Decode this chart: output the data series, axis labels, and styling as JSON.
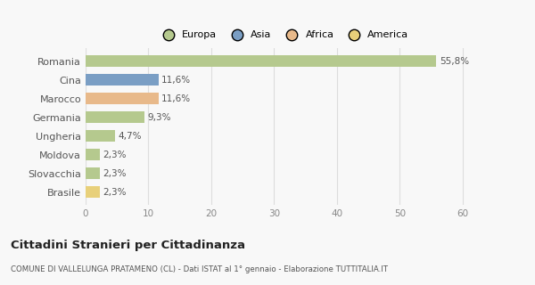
{
  "countries": [
    "Romania",
    "Cina",
    "Marocco",
    "Germania",
    "Ungheria",
    "Moldova",
    "Slovacchia",
    "Brasile"
  ],
  "values": [
    55.8,
    11.6,
    11.6,
    9.3,
    4.7,
    2.3,
    2.3,
    2.3
  ],
  "labels": [
    "55,8%",
    "11,6%",
    "11,6%",
    "9,3%",
    "4,7%",
    "2,3%",
    "2,3%",
    "2,3%"
  ],
  "colors": [
    "#b5c98e",
    "#7a9ec4",
    "#e8b98a",
    "#b5c98e",
    "#b5c98e",
    "#b5c98e",
    "#b5c98e",
    "#e8d07a"
  ],
  "legend_labels": [
    "Europa",
    "Asia",
    "Africa",
    "America"
  ],
  "legend_colors": [
    "#b5c98e",
    "#7a9ec4",
    "#e8b98a",
    "#e8d07a"
  ],
  "title": "Cittadini Stranieri per Cittadinanza",
  "subtitle": "COMUNE DI VALLELUNGA PRATAMENO (CL) - Dati ISTAT al 1° gennaio - Elaborazione TUTTITALIA.IT",
  "xlim": [
    0,
    63
  ],
  "xticks": [
    0,
    10,
    20,
    30,
    40,
    50,
    60
  ],
  "background_color": "#f8f8f8",
  "grid_color": "#dddddd",
  "bar_height": 0.62,
  "label_fontsize": 7.5,
  "ytick_fontsize": 8,
  "xtick_fontsize": 7.5
}
